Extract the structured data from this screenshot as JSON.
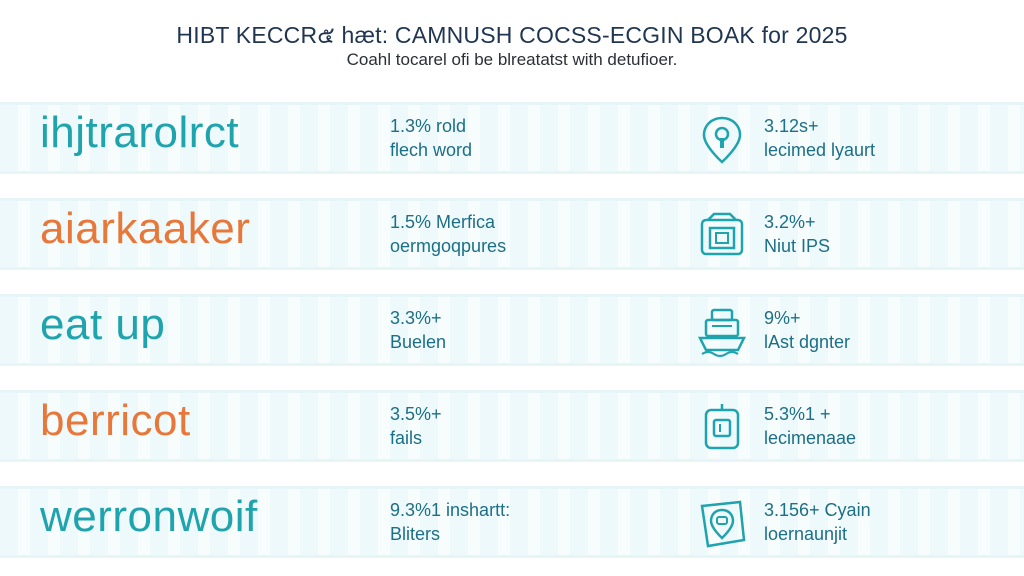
{
  "header": {
    "title": "HIBT KECCR๕ hæt: CAMNUSH COCSS-ECGIN BOAK for 2025",
    "subtitle": "Coahl tocarel ofi be blreatatst with detufioer."
  },
  "colors": {
    "teal": "#1fa3ad",
    "orange": "#e8773a",
    "text_dark": "#1f3550",
    "stat_text": "#1d6f86"
  },
  "rows": [
    {
      "word": "ihjtrarolrct",
      "word_color": "#1fa3ad",
      "word_accent": "",
      "stat_1": "1.3% rold",
      "stat_2": "flech word",
      "icon": "location-pin-icon",
      "side_1": "3.12s+",
      "side_2": "lecimed lyaurt"
    },
    {
      "word": "aiarkaaker",
      "word_color": "#e8773a",
      "word_accent": "#1fa3ad",
      "stat_1": "1.5% Merfica",
      "stat_2": "oermgoqpures",
      "icon": "id-card-icon",
      "side_1": "3.2%+",
      "side_2": "Niut IPS"
    },
    {
      "word": "eat up",
      "word_color": "#1fa3ad",
      "word_accent": "",
      "stat_1": "3.3%+",
      "stat_2": "Buelen",
      "icon": "boat-icon",
      "side_1": "9%+",
      "side_2": "lAst dgnter"
    },
    {
      "word": "berricot",
      "word_color": "#e8773a",
      "word_accent": "",
      "stat_1": "3.5%+",
      "stat_2": "fails",
      "icon": "device-icon",
      "side_1": "5.3%1 +",
      "side_2": "lecimenaae"
    },
    {
      "word": "werronwoif",
      "word_color": "#1fa3ad",
      "word_accent": "",
      "stat_1": "9.3%1 inshartt:",
      "stat_2": "Bliters",
      "icon": "map-pin-icon",
      "side_1": "3.156+ Cyain",
      "side_2": "loernaunjit"
    }
  ]
}
